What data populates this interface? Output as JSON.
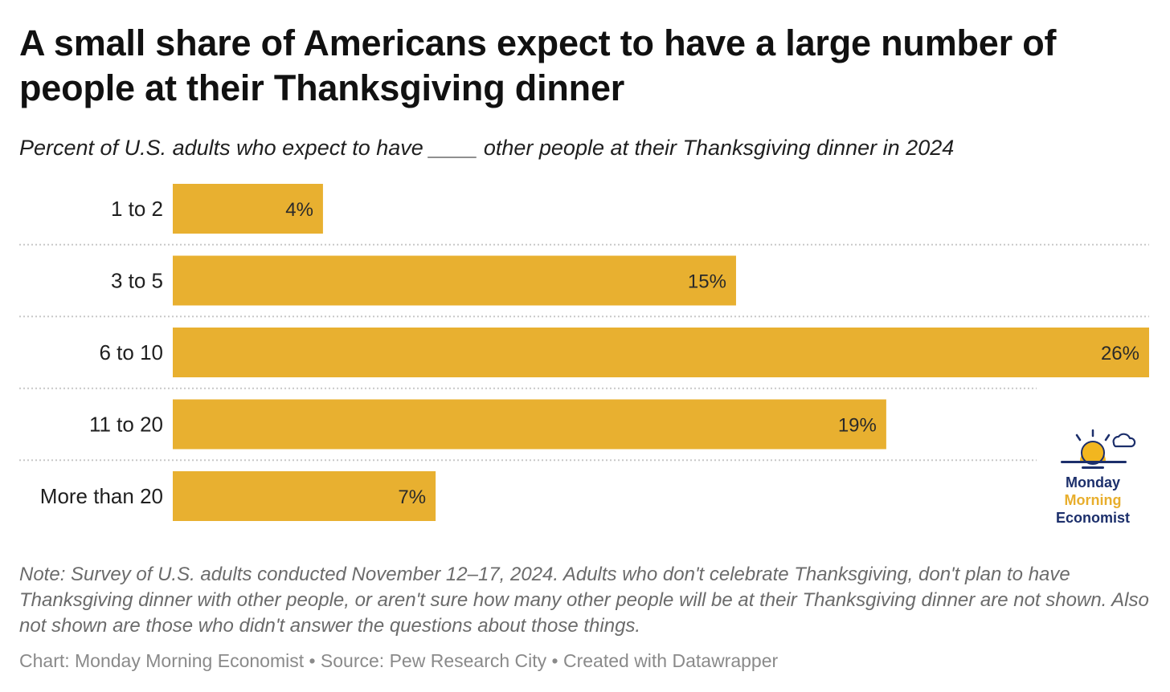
{
  "header": {
    "title": "A small share of Americans expect to have a large number of people at their Thanksgiving dinner",
    "subtitle": "Percent of U.S. adults who expect to have ____ other people at their Thanksgiving dinner in 2024"
  },
  "chart_data": {
    "type": "bar",
    "orientation": "horizontal",
    "title": "A small share of Americans expect to have a large number of people at their Thanksgiving dinner",
    "subtitle": "Percent of U.S. adults who expect to have ____ other people at their Thanksgiving dinner in 2024",
    "categories": [
      "1 to 2",
      "3 to 5",
      "6 to 10",
      "11 to 20",
      "More than 20"
    ],
    "values": [
      4,
      15,
      26,
      19,
      7
    ],
    "value_labels": [
      "4%",
      "15%",
      "26%",
      "19%",
      "7%"
    ],
    "xlim": [
      0,
      26
    ],
    "xlabel": "",
    "ylabel": "",
    "grid": false,
    "bar_color": "#e8b030",
    "separator_color": "#c8c8c8"
  },
  "logo": {
    "line1": "Monday",
    "line2": "Morning",
    "line3": "Economist",
    "navy": "#1c2f6b",
    "gold": "#e8ae2c"
  },
  "note": "Note: Survey of U.S. adults conducted November 12–17, 2024. Adults who don't celebrate Thanksgiving, don't plan to have Thanksgiving dinner with other people, or aren't sure how many other people will be at their Thanksgiving dinner are not shown. Also not shown are those who didn't answer the questions about those things.",
  "footer": "Chart: Monday Morning Economist • Source: Pew Research City • Created with Datawrapper"
}
